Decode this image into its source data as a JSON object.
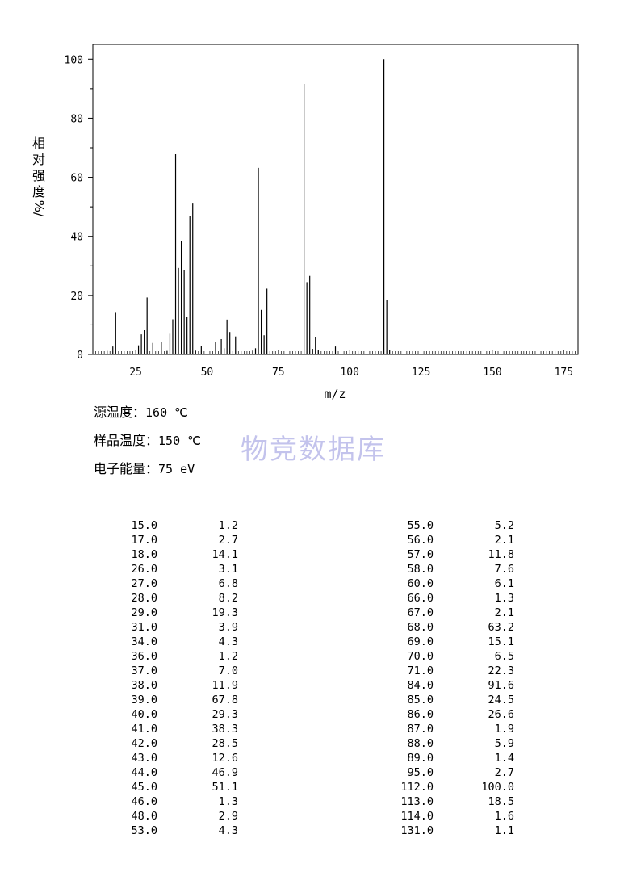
{
  "chart_data": {
    "type": "bar",
    "xlabel": "m/z",
    "ylabel": [
      "相",
      "对",
      "强",
      "度",
      "%/"
    ],
    "xlim": [
      10,
      180
    ],
    "ylim": [
      0,
      105
    ],
    "xticks": [
      25,
      50,
      75,
      100,
      125,
      150,
      175
    ],
    "yticks": [
      0,
      20,
      40,
      60,
      80,
      100
    ],
    "peaks": [
      [
        15.0,
        1.2
      ],
      [
        17.0,
        2.7
      ],
      [
        18.0,
        14.1
      ],
      [
        26.0,
        3.1
      ],
      [
        27.0,
        6.8
      ],
      [
        28.0,
        8.2
      ],
      [
        29.0,
        19.3
      ],
      [
        31.0,
        3.9
      ],
      [
        34.0,
        4.3
      ],
      [
        36.0,
        1.2
      ],
      [
        37.0,
        7.0
      ],
      [
        38.0,
        11.9
      ],
      [
        39.0,
        67.8
      ],
      [
        40.0,
        29.3
      ],
      [
        41.0,
        38.3
      ],
      [
        42.0,
        28.5
      ],
      [
        43.0,
        12.6
      ],
      [
        44.0,
        46.9
      ],
      [
        45.0,
        51.1
      ],
      [
        46.0,
        1.3
      ],
      [
        48.0,
        2.9
      ],
      [
        53.0,
        4.3
      ],
      [
        55.0,
        5.2
      ],
      [
        56.0,
        2.1
      ],
      [
        57.0,
        11.8
      ],
      [
        58.0,
        7.6
      ],
      [
        60.0,
        6.1
      ],
      [
        66.0,
        1.3
      ],
      [
        67.0,
        2.1
      ],
      [
        68.0,
        63.2
      ],
      [
        69.0,
        15.1
      ],
      [
        70.0,
        6.5
      ],
      [
        71.0,
        22.3
      ],
      [
        84.0,
        91.6
      ],
      [
        85.0,
        24.5
      ],
      [
        86.0,
        26.6
      ],
      [
        87.0,
        1.9
      ],
      [
        88.0,
        5.9
      ],
      [
        89.0,
        1.4
      ],
      [
        95.0,
        2.7
      ],
      [
        112.0,
        100.0
      ],
      [
        113.0,
        18.5
      ],
      [
        114.0,
        1.6
      ],
      [
        131.0,
        1.1
      ]
    ]
  },
  "info": {
    "source_temp_label": "源温度：",
    "source_temp_value": "160 ℃",
    "sample_temp_label": "样品温度：",
    "sample_temp_value": "150 ℃",
    "electron_energy_label": "电子能量：",
    "electron_energy_value": "75 eV"
  },
  "watermark": "物竞数据库",
  "table_left": [
    [
      "15.0",
      "1.2"
    ],
    [
      "17.0",
      "2.7"
    ],
    [
      "18.0",
      "14.1"
    ],
    [
      "26.0",
      "3.1"
    ],
    [
      "27.0",
      "6.8"
    ],
    [
      "28.0",
      "8.2"
    ],
    [
      "29.0",
      "19.3"
    ],
    [
      "31.0",
      "3.9"
    ],
    [
      "34.0",
      "4.3"
    ],
    [
      "36.0",
      "1.2"
    ],
    [
      "37.0",
      "7.0"
    ],
    [
      "38.0",
      "11.9"
    ],
    [
      "39.0",
      "67.8"
    ],
    [
      "40.0",
      "29.3"
    ],
    [
      "41.0",
      "38.3"
    ],
    [
      "42.0",
      "28.5"
    ],
    [
      "43.0",
      "12.6"
    ],
    [
      "44.0",
      "46.9"
    ],
    [
      "45.0",
      "51.1"
    ],
    [
      "46.0",
      "1.3"
    ],
    [
      "48.0",
      "2.9"
    ],
    [
      "53.0",
      "4.3"
    ]
  ],
  "table_right": [
    [
      "55.0",
      "5.2"
    ],
    [
      "56.0",
      "2.1"
    ],
    [
      "57.0",
      "11.8"
    ],
    [
      "58.0",
      "7.6"
    ],
    [
      "60.0",
      "6.1"
    ],
    [
      "66.0",
      "1.3"
    ],
    [
      "67.0",
      "2.1"
    ],
    [
      "68.0",
      "63.2"
    ],
    [
      "69.0",
      "15.1"
    ],
    [
      "70.0",
      "6.5"
    ],
    [
      "71.0",
      "22.3"
    ],
    [
      "84.0",
      "91.6"
    ],
    [
      "85.0",
      "24.5"
    ],
    [
      "86.0",
      "26.6"
    ],
    [
      "87.0",
      "1.9"
    ],
    [
      "88.0",
      "5.9"
    ],
    [
      "89.0",
      "1.4"
    ],
    [
      "95.0",
      "2.7"
    ],
    [
      "112.0",
      "100.0"
    ],
    [
      "113.0",
      "18.5"
    ],
    [
      "114.0",
      "1.6"
    ],
    [
      "131.0",
      "1.1"
    ]
  ]
}
